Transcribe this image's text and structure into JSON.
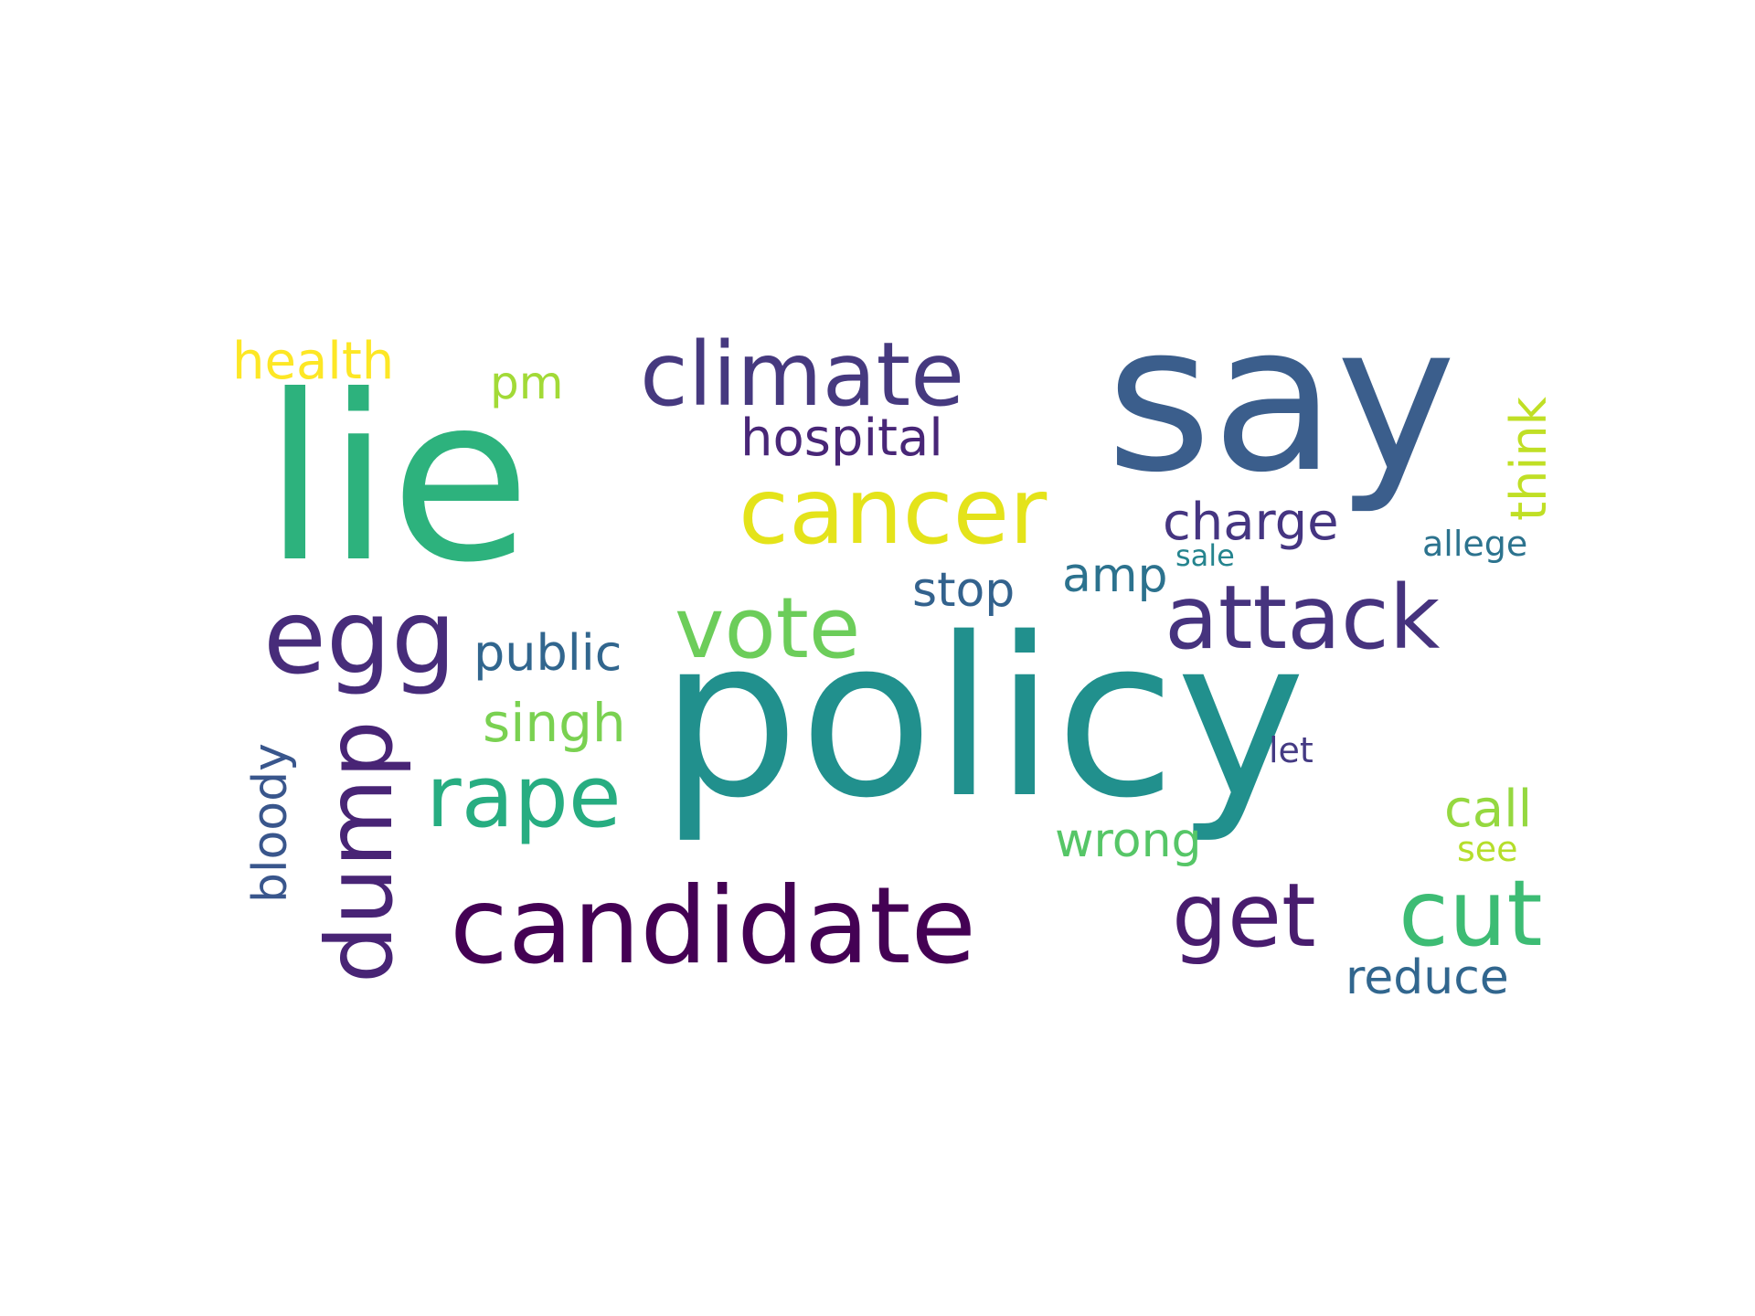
{
  "words": {
    "lie": "lie",
    "say": "say",
    "policy": "policy",
    "climate": "climate",
    "cancer": "cancer",
    "egg": "egg",
    "dump": "dump",
    "attack": "attack",
    "vote": "vote",
    "rape": "rape",
    "candidate": "candidate",
    "get": "get",
    "cut": "cut",
    "health": "health",
    "pm": "pm",
    "hospital": "hospital",
    "think": "think",
    "charge": "charge",
    "sale": "sale",
    "allege": "allege",
    "stop": "stop",
    "amp": "amp",
    "public": "public",
    "singh": "singh",
    "bloody": "bloody",
    "let": "let",
    "call": "call",
    "wrong": "wrong",
    "see": "see",
    "reduce": "reduce"
  },
  "colors": {
    "background": "#ffffff",
    "palette": [
      "#440154",
      "#482475",
      "#46337e",
      "#3b5e8c",
      "#31668e",
      "#2c728e",
      "#21908d",
      "#27ad81",
      "#2db27d",
      "#56c667",
      "#7ad151",
      "#a2da37",
      "#c0df25",
      "#e4e31a",
      "#fde725"
    ]
  }
}
